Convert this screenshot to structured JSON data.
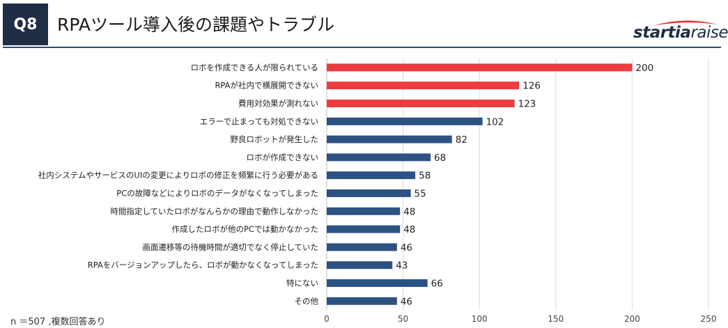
{
  "header": {
    "badge": "Q8",
    "title": "RPAツール導入後の課題やトラブル"
  },
  "logo": {
    "part1": "startia",
    "part2": "raise",
    "swoosh_color": "#e8383d"
  },
  "footnote": "n ＝507 ,複数回答あり",
  "chart_data": {
    "type": "bar",
    "orientation": "horizontal",
    "title": "RPAツール導入後の課題やトラブル",
    "categories": [
      "ロボを作成できる人が限られている",
      "RPAが社内で横展開できない",
      "費用対効果が測れない",
      "エラーで止まっても対処できない",
      "野良ロボットが発生した",
      "ロボが作成できない",
      "社内システムやサービスのUIの変更によりロボの修正を頻繁に行う必要がある",
      "PCの故障などによりロボのデータがなくなってしまった",
      "時間指定していたロボがなんらかの理由で動作しなかった",
      "作成したロボが他のPCでは動かなかった",
      "画面遷移等の待機時間が適切でなく停止していた",
      "RPAをバージョンアップしたら、ロボが動かなくなってしまった",
      "特にない",
      "その他"
    ],
    "values": [
      200,
      126,
      123,
      102,
      82,
      68,
      58,
      55,
      48,
      48,
      46,
      43,
      66,
      46
    ],
    "highlight": [
      true,
      true,
      true,
      false,
      false,
      false,
      false,
      false,
      false,
      false,
      false,
      false,
      false,
      false
    ],
    "colors": {
      "highlight": "#ee3b3f",
      "normal": "#2c5282"
    },
    "xlim": [
      0,
      250
    ],
    "xticks": [
      0,
      50,
      100,
      150,
      200,
      250
    ],
    "grid": true,
    "xlabel": "",
    "ylabel": ""
  }
}
